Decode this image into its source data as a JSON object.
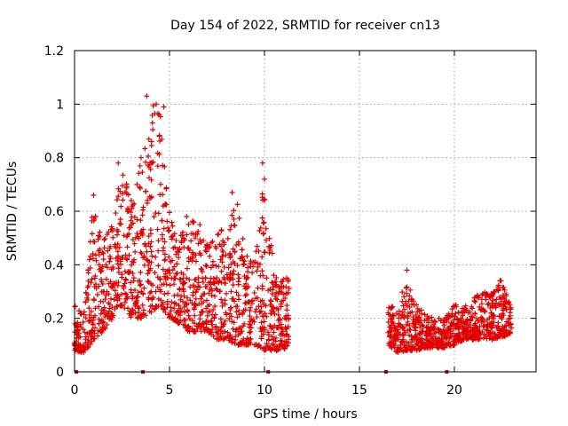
{
  "chart_data": {
    "type": "scatter",
    "title": "Day 154 of 2022, SRMTID for receiver cn13",
    "xlabel": "GPS time / hours",
    "ylabel": "SRMTID / TECUs",
    "xlim": [
      0,
      24.3
    ],
    "ylim": [
      0,
      1.2
    ],
    "xticks": [
      "0",
      "5",
      "10",
      "15",
      "20"
    ],
    "yticks": [
      "0",
      "0.2",
      "0.4",
      "0.6",
      "0.8",
      "1",
      "1.2"
    ],
    "grid": true,
    "marker": "+",
    "color": "#e00000",
    "gap_markers_x": [
      0.1,
      3.6,
      10.2,
      16.4,
      19.6
    ],
    "envelope": [
      {
        "t": 0.0,
        "lo": 0.08,
        "hi": 0.25
      },
      {
        "t": 0.5,
        "lo": 0.07,
        "hi": 0.22
      },
      {
        "t": 1.0,
        "lo": 0.12,
        "hi": 0.65
      },
      {
        "t": 1.5,
        "lo": 0.15,
        "hi": 0.5
      },
      {
        "t": 2.0,
        "lo": 0.2,
        "hi": 0.55
      },
      {
        "t": 2.5,
        "lo": 0.25,
        "hi": 0.78
      },
      {
        "t": 3.0,
        "lo": 0.2,
        "hi": 0.65
      },
      {
        "t": 3.5,
        "lo": 0.2,
        "hi": 0.8
      },
      {
        "t": 4.0,
        "lo": 0.22,
        "hi": 1.02
      },
      {
        "t": 4.5,
        "lo": 0.25,
        "hi": 0.98
      },
      {
        "t": 5.0,
        "lo": 0.2,
        "hi": 0.6
      },
      {
        "t": 5.5,
        "lo": 0.18,
        "hi": 0.52
      },
      {
        "t": 6.0,
        "lo": 0.15,
        "hi": 0.58
      },
      {
        "t": 6.5,
        "lo": 0.15,
        "hi": 0.55
      },
      {
        "t": 7.0,
        "lo": 0.15,
        "hi": 0.48
      },
      {
        "t": 7.5,
        "lo": 0.12,
        "hi": 0.52
      },
      {
        "t": 8.0,
        "lo": 0.12,
        "hi": 0.55
      },
      {
        "t": 8.5,
        "lo": 0.1,
        "hi": 0.67
      },
      {
        "t": 9.0,
        "lo": 0.1,
        "hi": 0.45
      },
      {
        "t": 9.5,
        "lo": 0.1,
        "hi": 0.42
      },
      {
        "t": 10.0,
        "lo": 0.08,
        "hi": 0.78
      },
      {
        "t": 10.5,
        "lo": 0.08,
        "hi": 0.38
      },
      {
        "t": 11.0,
        "lo": 0.08,
        "hi": 0.37
      },
      {
        "t": 11.3,
        "lo": 0.1,
        "hi": 0.35
      },
      {
        "t": 16.5,
        "lo": 0.1,
        "hi": 0.27
      },
      {
        "t": 17.0,
        "lo": 0.07,
        "hi": 0.22
      },
      {
        "t": 17.5,
        "lo": 0.08,
        "hi": 0.38
      },
      {
        "t": 18.0,
        "lo": 0.08,
        "hi": 0.25
      },
      {
        "t": 18.5,
        "lo": 0.09,
        "hi": 0.22
      },
      {
        "t": 19.0,
        "lo": 0.09,
        "hi": 0.2
      },
      {
        "t": 19.5,
        "lo": 0.09,
        "hi": 0.2
      },
      {
        "t": 20.0,
        "lo": 0.1,
        "hi": 0.25
      },
      {
        "t": 20.5,
        "lo": 0.12,
        "hi": 0.25
      },
      {
        "t": 21.0,
        "lo": 0.12,
        "hi": 0.28
      },
      {
        "t": 21.5,
        "lo": 0.12,
        "hi": 0.3
      },
      {
        "t": 22.0,
        "lo": 0.12,
        "hi": 0.29
      },
      {
        "t": 22.5,
        "lo": 0.13,
        "hi": 0.35
      },
      {
        "t": 23.0,
        "lo": 0.14,
        "hi": 0.25
      }
    ],
    "spikes": [
      {
        "t": 2.3,
        "v": 0.78
      },
      {
        "t": 3.8,
        "v": 1.03
      },
      {
        "t": 4.3,
        "v": 1.0
      },
      {
        "t": 4.7,
        "v": 0.99
      },
      {
        "t": 4.1,
        "v": 0.93
      },
      {
        "t": 8.3,
        "v": 0.67
      },
      {
        "t": 9.9,
        "v": 0.78
      },
      {
        "t": 10.0,
        "v": 0.72
      },
      {
        "t": 17.5,
        "v": 0.38
      },
      {
        "t": 22.4,
        "v": 0.34
      },
      {
        "t": 1.0,
        "v": 0.66
      },
      {
        "t": 3.5,
        "v": 0.8
      },
      {
        "t": 5.9,
        "v": 0.58
      },
      {
        "t": 6.6,
        "v": 0.55
      }
    ]
  }
}
